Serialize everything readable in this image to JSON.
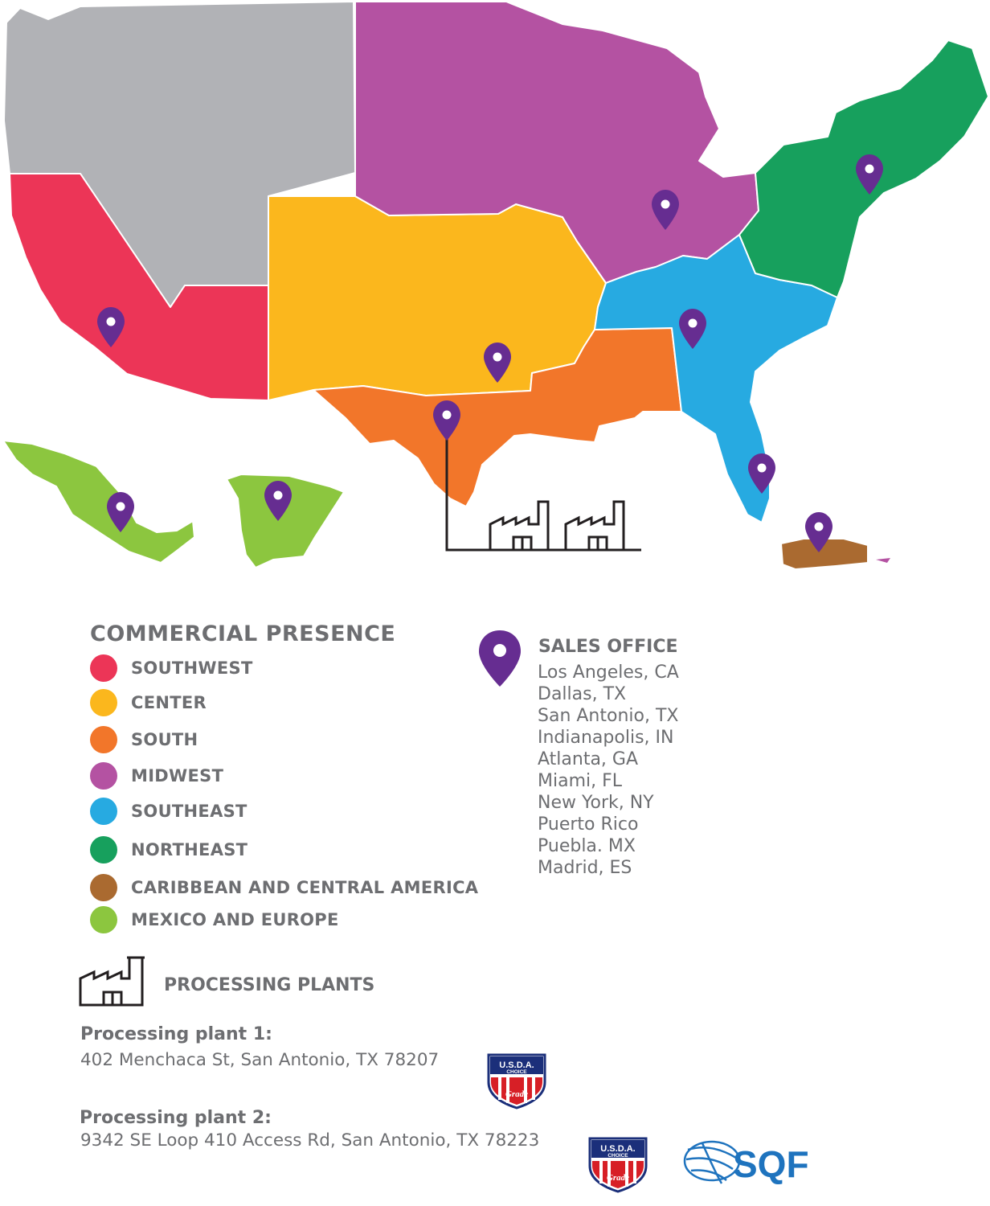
{
  "map": {
    "region_colors": {
      "west_gray": "#b1b2b6",
      "southwest": "#ec3557",
      "center": "#fbb71d",
      "south": "#f2762a",
      "midwest": "#b452a2",
      "southeast": "#27aae1",
      "northeast": "#17a05d",
      "caribbean_central_america": "#aa6a30",
      "mexico_europe": "#8cc63f"
    },
    "pin_color": "#662d91",
    "pin_icon": "map-pin-icon",
    "plant_icon": "factory-icon"
  },
  "legend": {
    "title": "COMMERCIAL PRESENCE",
    "items": [
      {
        "label": "SOUTHWEST",
        "color": "#ec3557"
      },
      {
        "label": "CENTER",
        "color": "#fbb71d"
      },
      {
        "label": "SOUTH",
        "color": "#f2762a"
      },
      {
        "label": "MIDWEST",
        "color": "#b452a2"
      },
      {
        "label": "SOUTHEAST",
        "color": "#27aae1"
      },
      {
        "label": "NORTHEAST",
        "color": "#17a05d"
      },
      {
        "label": "CARIBBEAN AND CENTRAL AMERICA",
        "color": "#aa6a30"
      },
      {
        "label": "MEXICO AND EUROPE",
        "color": "#8cc63f"
      }
    ]
  },
  "sales": {
    "title": "SALES OFFICE",
    "offices": [
      "Los Angeles, CA",
      "Dallas, TX",
      "San Antonio, TX",
      "Indianapolis, IN",
      "Atlanta, GA",
      "Miami, FL",
      "New York, NY",
      "Puerto Rico",
      "Puebla. MX",
      "Madrid, ES"
    ]
  },
  "plants": {
    "title": "PROCESSING PLANTS",
    "plant1": {
      "heading": "Processing plant 1:",
      "address": "402 Menchaca  St, San Antonio, TX 78207"
    },
    "plant2": {
      "heading": "Processing plant 2:",
      "address": "9342 SE Loop 410  Access Rd, San Antonio, TX 78223"
    }
  },
  "badges": {
    "usda": {
      "line1": "U.S.D.A.",
      "line2": "CHOICE",
      "line3": "Grade"
    },
    "sqf": {
      "text": "SQF",
      "color": "#1e73be"
    }
  }
}
